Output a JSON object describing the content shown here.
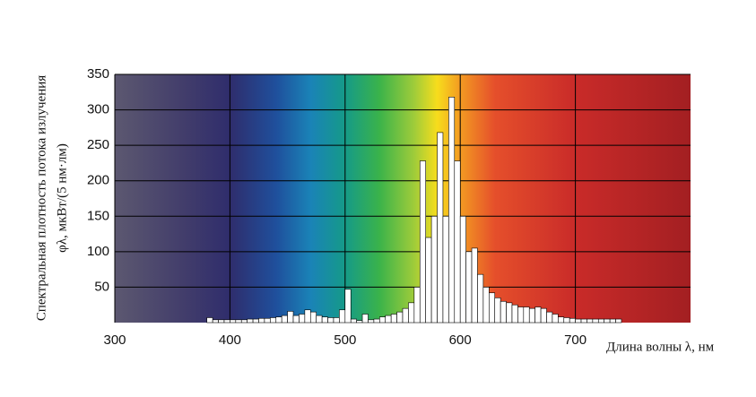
{
  "chart_data": {
    "type": "histogram",
    "y_label": [
      "Спектральная плотность потока излучения",
      "φλ, мкВт/(5 нм·лм)"
    ],
    "x_label": "Длина волны λ, нм",
    "bins": [
      380,
      385,
      390,
      395,
      400,
      405,
      410,
      415,
      420,
      425,
      430,
      435,
      440,
      445,
      450,
      455,
      460,
      465,
      470,
      475,
      480,
      485,
      490,
      495,
      500,
      505,
      510,
      515,
      520,
      525,
      530,
      535,
      540,
      545,
      550,
      555,
      560,
      565,
      570,
      575,
      580,
      585,
      590,
      595,
      600,
      605,
      610,
      615,
      620,
      625,
      630,
      635,
      640,
      645,
      650,
      655,
      660,
      665,
      670,
      675,
      680,
      685,
      690,
      695,
      700,
      705,
      710,
      715,
      720,
      725,
      730,
      735,
      740
    ],
    "values": [
      7,
      4,
      4,
      4,
      4,
      4,
      4,
      5,
      5,
      6,
      6,
      7,
      8,
      10,
      16,
      10,
      12,
      18,
      15,
      10,
      8,
      7,
      7,
      18,
      47,
      5,
      3,
      12,
      4,
      5,
      8,
      10,
      12,
      15,
      20,
      28,
      50,
      228,
      120,
      150,
      268,
      150,
      318,
      228,
      150,
      100,
      105,
      68,
      50,
      42,
      35,
      30,
      28,
      25,
      22,
      22,
      20,
      22,
      20,
      15,
      12,
      8,
      7,
      6,
      5,
      5,
      5,
      5,
      5,
      5,
      5,
      5
    ],
    "color": "#ffffff",
    "xlim": [
      300,
      800
    ],
    "xticks": [
      300,
      400,
      500,
      600,
      700
    ],
    "ylim": [
      0,
      350
    ],
    "yticks": [
      50,
      100,
      150,
      200,
      250,
      300,
      350
    ],
    "grid": true
  }
}
